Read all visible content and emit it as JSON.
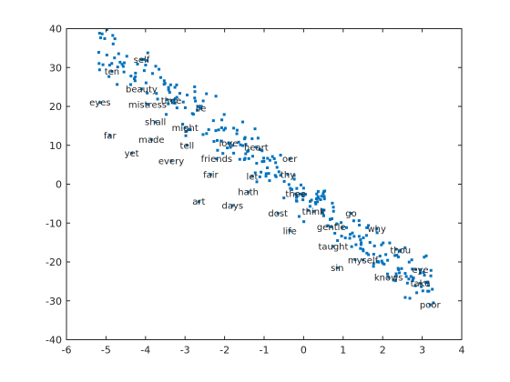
{
  "chart_data": {
    "type": "scatter",
    "title": "",
    "xlabel": "",
    "ylabel": "",
    "xlim": [
      -6,
      4
    ],
    "ylim": [
      -40,
      40
    ],
    "xticks": [
      -6,
      -5,
      -4,
      -3,
      -2,
      -1,
      0,
      1,
      2,
      3,
      4
    ],
    "yticks": [
      -40,
      -30,
      -20,
      -10,
      0,
      10,
      20,
      30,
      40
    ],
    "grid": false,
    "box": true,
    "marker_color": "#0072BD",
    "labeled_points": [
      {
        "label": "self",
        "x": -4.1,
        "y": 32.0
      },
      {
        "label": "ten",
        "x": -4.85,
        "y": 29.0
      },
      {
        "label": "beauty",
        "x": -4.1,
        "y": 24.5
      },
      {
        "label": "eyes",
        "x": -5.15,
        "y": 21.0
      },
      {
        "label": "mistress",
        "x": -3.95,
        "y": 20.5
      },
      {
        "label": "time",
        "x": -3.35,
        "y": 21.5
      },
      {
        "label": "lie",
        "x": -2.6,
        "y": 19.5
      },
      {
        "label": "shall",
        "x": -3.75,
        "y": 16.0
      },
      {
        "label": "might",
        "x": -3.0,
        "y": 14.5
      },
      {
        "label": "far",
        "x": -4.9,
        "y": 12.5
      },
      {
        "label": "made",
        "x": -3.85,
        "y": 11.5
      },
      {
        "label": "tell",
        "x": -2.95,
        "y": 10.0
      },
      {
        "label": "love",
        "x": -1.9,
        "y": 10.5
      },
      {
        "label": "heart",
        "x": -1.2,
        "y": 9.5
      },
      {
        "label": "yet",
        "x": -4.35,
        "y": 8.0
      },
      {
        "label": "friends",
        "x": -2.2,
        "y": 6.5
      },
      {
        "label": "oer",
        "x": -0.35,
        "y": 6.5
      },
      {
        "label": "every",
        "x": -3.35,
        "y": 6.0
      },
      {
        "label": "fair",
        "x": -2.35,
        "y": 2.5
      },
      {
        "label": "let",
        "x": -1.3,
        "y": 2.0
      },
      {
        "label": "thy",
        "x": -0.4,
        "y": 2.5
      },
      {
        "label": "hath",
        "x": -1.4,
        "y": -2.0
      },
      {
        "label": "thee",
        "x": -0.2,
        "y": -2.5
      },
      {
        "label": "art",
        "x": -2.65,
        "y": -4.5
      },
      {
        "label": "days",
        "x": -1.8,
        "y": -5.5
      },
      {
        "label": "think",
        "x": 0.25,
        "y": -7.0
      },
      {
        "label": "dost",
        "x": -0.65,
        "y": -7.5
      },
      {
        "label": "go",
        "x": 1.2,
        "y": -7.5
      },
      {
        "label": "gentle",
        "x": 0.7,
        "y": -11.0
      },
      {
        "label": "life",
        "x": -0.35,
        "y": -12.0
      },
      {
        "label": "why",
        "x": 1.85,
        "y": -11.5
      },
      {
        "label": "taught",
        "x": 0.75,
        "y": -16.0
      },
      {
        "label": "thou",
        "x": 2.45,
        "y": -17.0
      },
      {
        "label": "myself",
        "x": 1.5,
        "y": -19.5
      },
      {
        "label": "sin",
        "x": 0.85,
        "y": -21.5
      },
      {
        "label": "eye",
        "x": 2.95,
        "y": -22.0
      },
      {
        "label": "knows",
        "x": 2.15,
        "y": -24.0
      },
      {
        "label": "take",
        "x": 2.95,
        "y": -25.5
      },
      {
        "label": "poor",
        "x": 3.2,
        "y": -31.0
      }
    ]
  }
}
